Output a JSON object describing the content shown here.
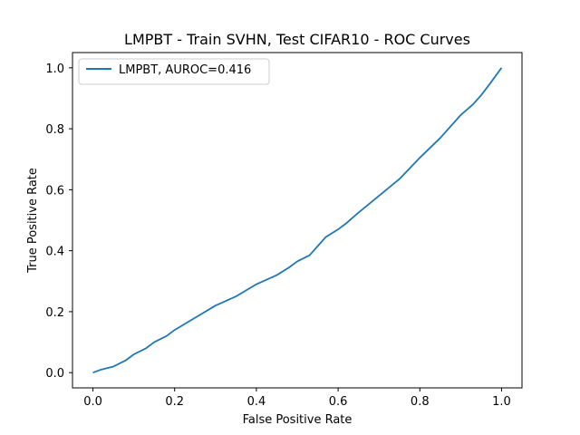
{
  "chart_data": {
    "type": "line",
    "title": "LMPBT - Train SVHN, Test CIFAR10 - ROC Curves",
    "xlabel": "False Positive Rate",
    "ylabel": "True Positive Rate",
    "xlim": [
      -0.05,
      1.05
    ],
    "ylim": [
      -0.05,
      1.05
    ],
    "x_ticks": [
      "0.0",
      "0.2",
      "0.4",
      "0.6",
      "0.8",
      "1.0"
    ],
    "y_ticks": [
      "0.0",
      "0.2",
      "0.4",
      "0.6",
      "0.8",
      "1.0"
    ],
    "grid": false,
    "legend_position": "upper left",
    "series": [
      {
        "name": "LMPBT, AUROC=0.416",
        "color": "#1f77b4",
        "x": [
          0.0,
          0.02,
          0.05,
          0.08,
          0.1,
          0.13,
          0.15,
          0.18,
          0.2,
          0.25,
          0.3,
          0.35,
          0.4,
          0.45,
          0.48,
          0.5,
          0.53,
          0.55,
          0.57,
          0.6,
          0.62,
          0.65,
          0.7,
          0.75,
          0.8,
          0.85,
          0.9,
          0.93,
          0.95,
          0.97,
          1.0
        ],
        "y": [
          0.0,
          0.01,
          0.02,
          0.04,
          0.06,
          0.08,
          0.1,
          0.12,
          0.14,
          0.18,
          0.22,
          0.25,
          0.29,
          0.32,
          0.345,
          0.365,
          0.385,
          0.415,
          0.445,
          0.47,
          0.49,
          0.525,
          0.58,
          0.635,
          0.705,
          0.77,
          0.845,
          0.88,
          0.91,
          0.945,
          1.0
        ]
      }
    ]
  }
}
